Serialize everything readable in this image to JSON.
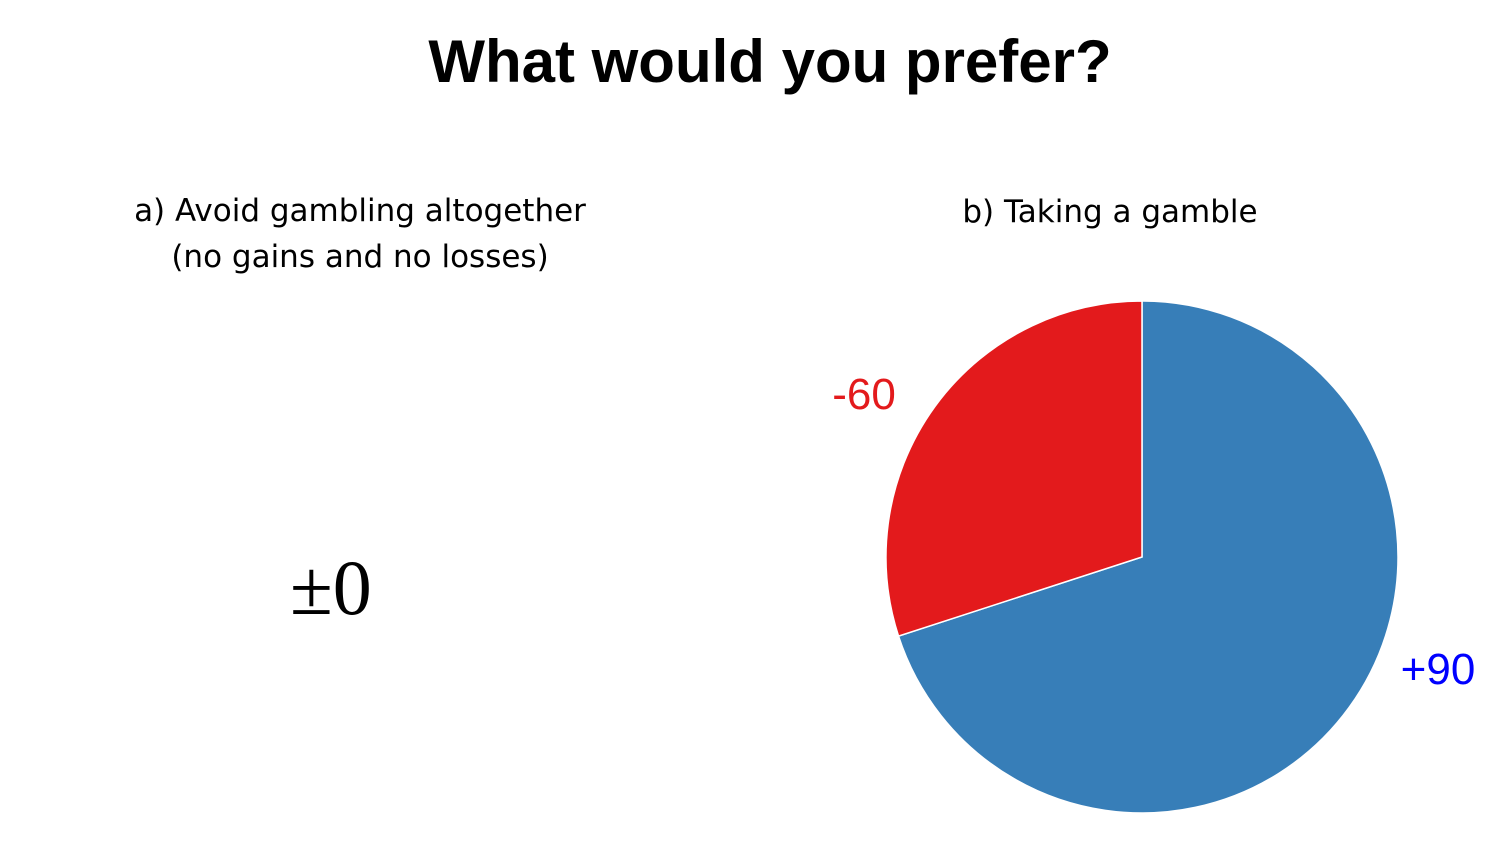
{
  "title": "What would you prefer?",
  "option_a": {
    "label_line1": "a) Avoid gambling altogether",
    "label_line2": "(no gains and no losses)",
    "value": "±0"
  },
  "option_b": {
    "label": "b) Taking a gamble"
  },
  "colors": {
    "loss": "#e31a1c",
    "gain": "#377eb8",
    "loss_label": "#e31a1c",
    "gain_label": "#0000ff"
  },
  "chart_data": {
    "type": "pie",
    "title": "",
    "slices": [
      {
        "label": "+90",
        "share": 0.7,
        "color": "#377eb8",
        "label_color": "#0000ff"
      },
      {
        "label": "-60",
        "share": 0.3,
        "color": "#e31a1c",
        "label_color": "#e31a1c"
      }
    ],
    "start": "12 o'clock",
    "direction": "clockwise",
    "legend": "none"
  }
}
